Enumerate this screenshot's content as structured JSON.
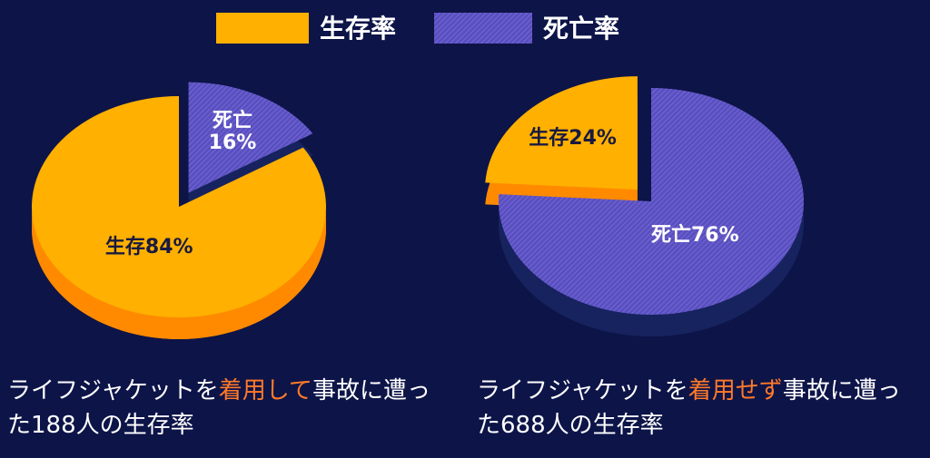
{
  "legend": {
    "items": [
      {
        "name": "生存率",
        "color": "#ffb000"
      },
      {
        "name": "死亡率",
        "color": "#5a4fc0"
      }
    ]
  },
  "chart_data": [
    {
      "type": "pie",
      "values": [
        16,
        84
      ],
      "value_labels": [
        "死亡\n16%",
        "生存84%"
      ],
      "colors": [
        "#5a4fc0",
        "#ffb000"
      ],
      "side_colors": [
        "#16235e",
        "#ff8a00"
      ],
      "label_colors": [
        "#ffffff",
        "#1a1a40"
      ],
      "explode": [
        true,
        false
      ],
      "caption": [
        "ライフジャケットを",
        "着用して",
        "事故に遭った188人の生存率"
      ],
      "caption_highlight_color": "#ff7a2a"
    },
    {
      "type": "pie",
      "values": [
        76,
        24
      ],
      "value_labels": [
        "死亡76%",
        "生存24%"
      ],
      "colors": [
        "#5a4fc0",
        "#ffb000"
      ],
      "side_colors": [
        "#16235e",
        "#ff8a00"
      ],
      "label_colors": [
        "#ffffff",
        "#1a1a40"
      ],
      "explode": [
        false,
        true
      ],
      "caption": [
        "ライフジャケットを",
        "着用せず",
        "事故に遭った688人の生存率"
      ],
      "caption_highlight_color": "#ff7a2a"
    }
  ]
}
